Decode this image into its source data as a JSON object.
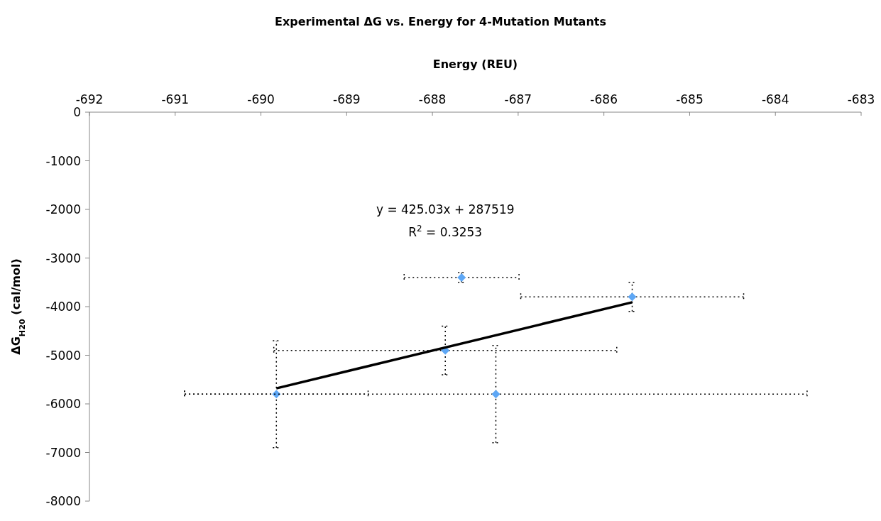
{
  "chart_data": {
    "type": "scatter",
    "title": "Experimental ΔG vs. Energy for 4-Mutation Mutants",
    "xlabel": "Energy (REU)",
    "ylabel": "ΔG$_{H20}$ (cal/mol)",
    "xlim": [
      -692,
      -683
    ],
    "xticks": [
      -692,
      -691,
      -690,
      -689,
      -688,
      -687,
      -686,
      -685,
      -684,
      -683
    ],
    "ylim": [
      -8000,
      0
    ],
    "yticks": [
      0,
      -1000,
      -2000,
      -3000,
      -4000,
      -5000,
      -6000,
      -7000,
      -8000
    ],
    "grid": false,
    "series": [
      {
        "marker": "diamond",
        "color": "#5ea7f5",
        "x": [
          -689.82,
          -687.85,
          -687.66,
          -685.67,
          -687.26
        ],
        "values": [
          -5800,
          -4900,
          -3400,
          -3800,
          -5800
        ],
        "errors": [
          1100,
          500,
          100,
          300,
          1000
        ],
        "xerrors": [
          1.07,
          2,
          0.67,
          1.3,
          3.63
        ]
      },
      {
        "type": "line",
        "color": "#000000",
        "x": [
          -689.82,
          -685.67
        ],
        "values": [
          -5680,
          -3910
        ]
      }
    ],
    "annotations": [
      "y = 425.03x + 287519",
      "R$^{2}$ = 0.3253"
    ]
  }
}
